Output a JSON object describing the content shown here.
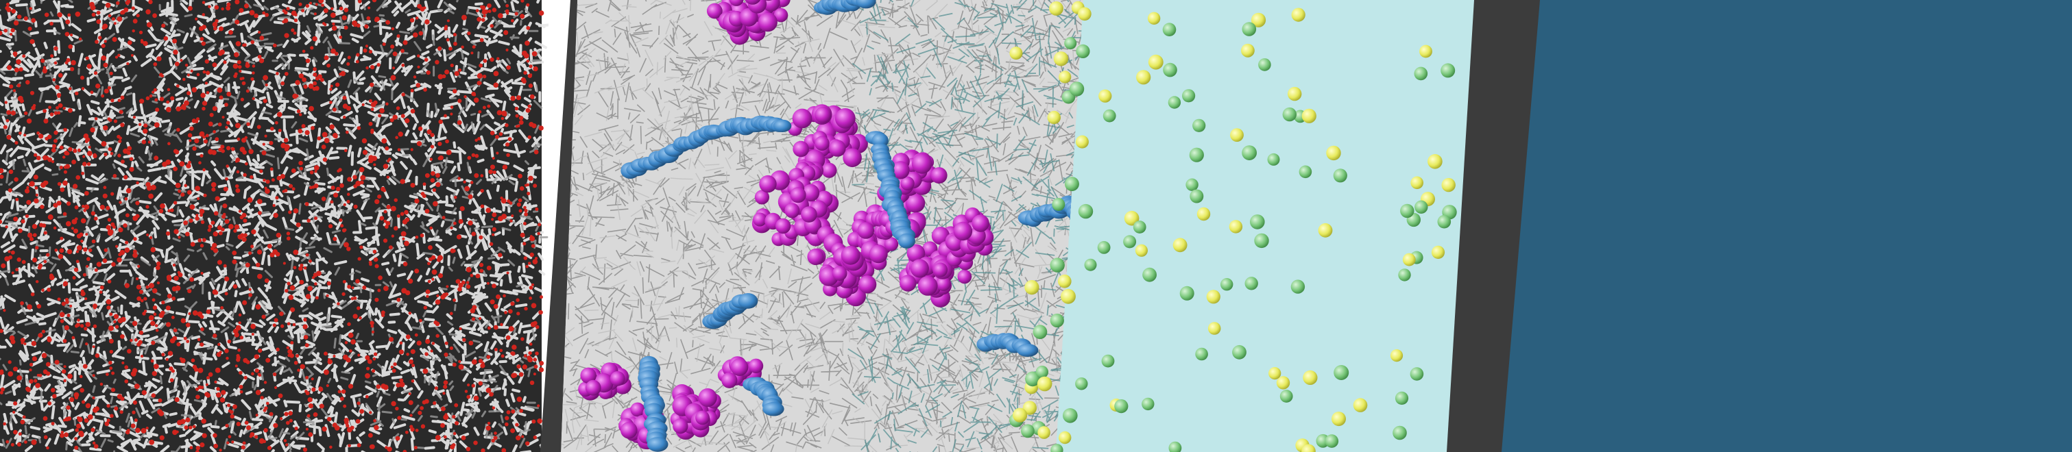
{
  "scene": {
    "colors": {
      "background": "#ffffff",
      "water_white": "#e9e9e9",
      "water_dark": "#3a3a3a",
      "water_red": "#d0241d",
      "frame_gray": "#3c3c3c",
      "solution_cyan": "#bfe9ea",
      "lipid_gray": "#8d8d8d",
      "molecule_magenta": "#c426c4",
      "molecule_blue": "#3c86c8",
      "ion_yellow": "#e7ea5c",
      "ion_green": "#79c77a",
      "protein_teal": "#4f8c8e",
      "slab_blue": "#2b5f7e"
    },
    "panels": [
      {
        "name": "water-box",
        "description_visible": false
      },
      {
        "name": "membrane-panel"
      },
      {
        "name": "solution-panel"
      },
      {
        "name": "blue-slab"
      }
    ]
  }
}
